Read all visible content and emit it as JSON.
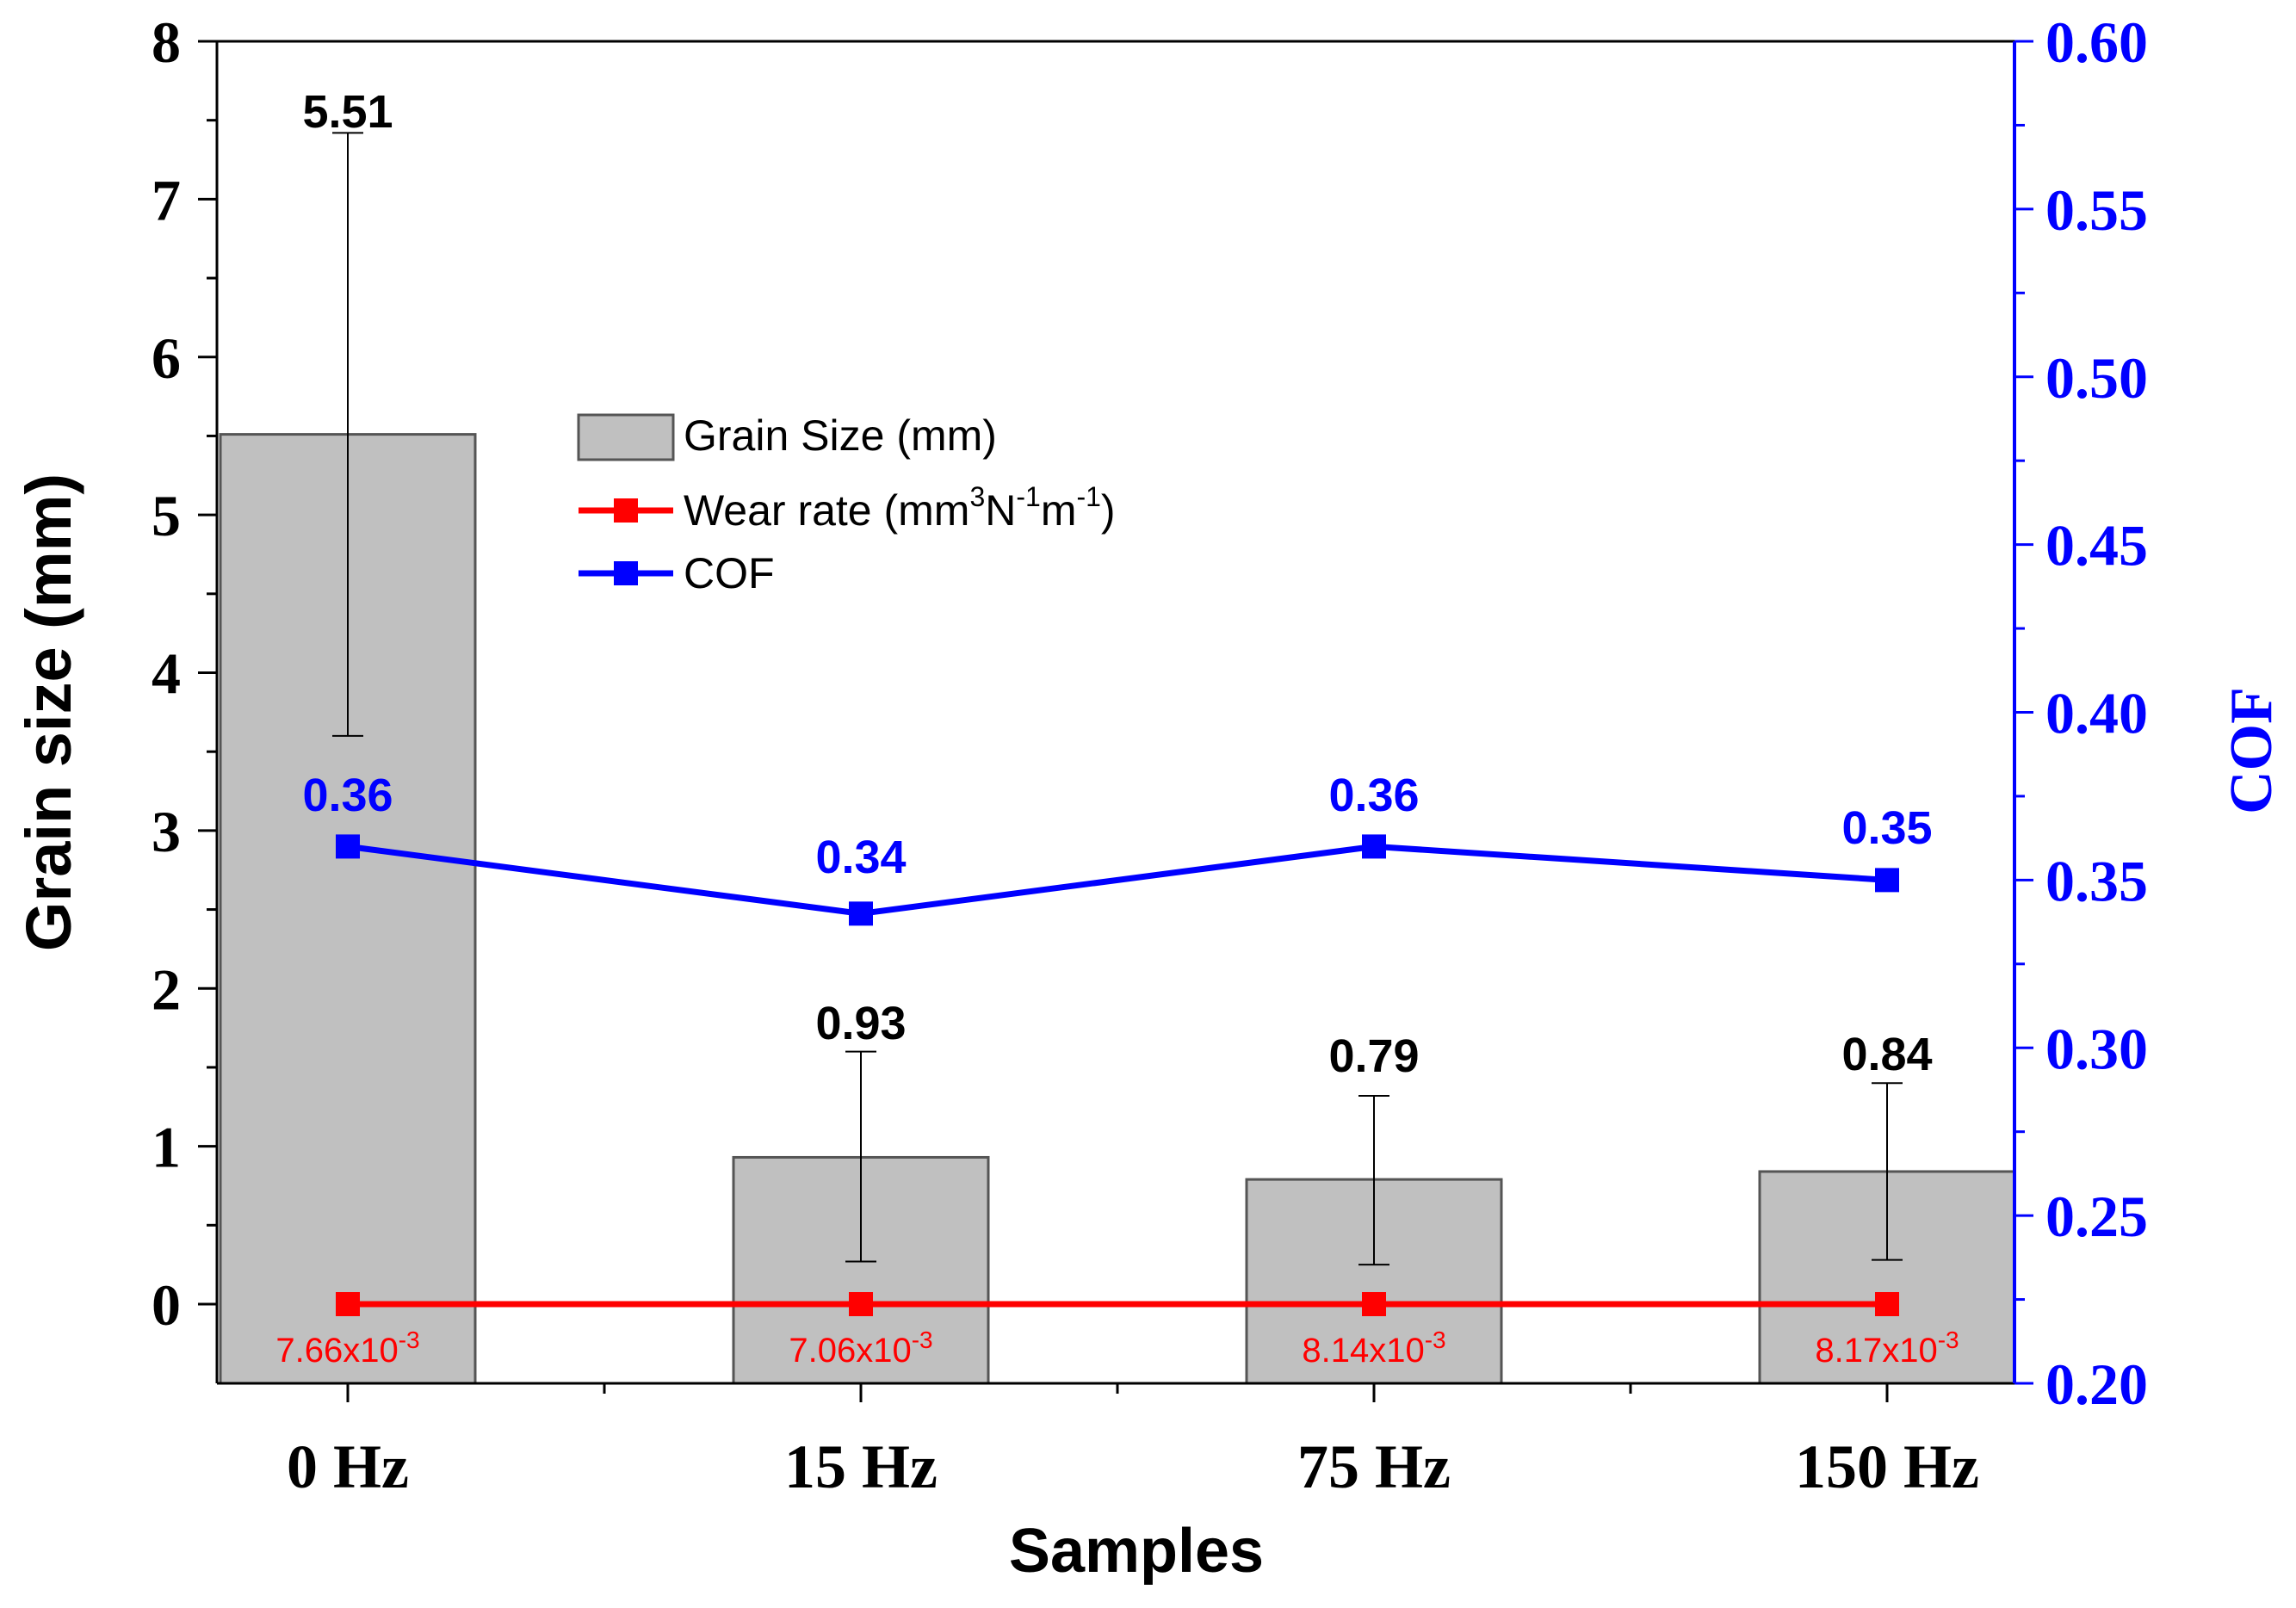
{
  "chart_data": {
    "type": "bar",
    "title": "",
    "xlabel": "Samples",
    "ylabel": "Grain size (mm)",
    "y2label": "COF",
    "categories": [
      "0 Hz",
      "15 Hz",
      "75 Hz",
      "150 Hz"
    ],
    "ylim": [
      -0.5,
      8
    ],
    "y_ticks": [
      "0",
      "1",
      "2",
      "3",
      "4",
      "5",
      "6",
      "7",
      "8"
    ],
    "y2lim": [
      0.2,
      0.6
    ],
    "y2_ticks": [
      "0.20",
      "0.25",
      "0.30",
      "0.35",
      "0.40",
      "0.45",
      "0.50",
      "0.55",
      "0.60"
    ],
    "grain_size": {
      "name": "Grain Size (mm)",
      "values": [
        5.51,
        0.93,
        0.79,
        0.84
      ],
      "labels": [
        "5.51",
        "0.93",
        "0.79",
        "0.84"
      ],
      "error_low": [
        3.6,
        0.27,
        0.25,
        0.28
      ],
      "error_high": [
        7.42,
        1.6,
        1.32,
        1.4
      ],
      "color": "#c0c0c0"
    },
    "wear_rate": {
      "name_prefix": "Wear rate (mm",
      "name_sup1": "3",
      "name_mid1": "N",
      "name_sup2": "-1",
      "name_mid2": "m",
      "name_sup3": "-1",
      "name_suffix": ")",
      "values": [
        0.00766,
        0.00706,
        0.00814,
        0.00817
      ],
      "label_mantissas": [
        "7.66x10",
        "7.06x10",
        "8.14x10",
        "8.17x10"
      ],
      "label_exponent": "-3",
      "color": "#ff0000"
    },
    "cof": {
      "name": "COF",
      "values": [
        0.36,
        0.34,
        0.36,
        0.35
      ],
      "labels": [
        "0.36",
        "0.34",
        "0.36",
        "0.35"
      ],
      "color": "#0000ff"
    },
    "legend_position": "upper-left-center"
  }
}
